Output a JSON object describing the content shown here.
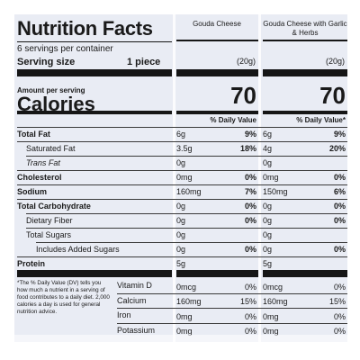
{
  "header": {
    "title": "Nutrition Facts",
    "servings": "6 servings per container",
    "serving_size_label": "Serving size",
    "serving_size_value": "1 piece",
    "amount_per_serving": "Amount per serving",
    "calories_label": "Calories",
    "dv_header_1": "% Daily Value",
    "dv_header_2": "% Daily Value*"
  },
  "products": [
    {
      "name": "Gouda Cheese",
      "serving_grams": "(20g)",
      "calories": "70"
    },
    {
      "name": "Gouda Cheese with Garlic & Herbs",
      "serving_grams": "(20g)",
      "calories": "70"
    }
  ],
  "nutrients": [
    {
      "label": "Total Fat",
      "p1_amt": "6g",
      "p1_dv": "9%",
      "p2_amt": "6g",
      "p2_dv": "9%"
    },
    {
      "label": "Saturated Fat",
      "p1_amt": "3.5g",
      "p1_dv": "18%",
      "p2_amt": "4g",
      "p2_dv": "20%"
    },
    {
      "label": "Trans Fat",
      "p1_amt": "0g",
      "p1_dv": "",
      "p2_amt": "0g",
      "p2_dv": ""
    },
    {
      "label": "Cholesterol",
      "p1_amt": "0mg",
      "p1_dv": "0%",
      "p2_amt": "0mg",
      "p2_dv": "0%"
    },
    {
      "label": "Sodium",
      "p1_amt": "160mg",
      "p1_dv": "7%",
      "p2_amt": "150mg",
      "p2_dv": "6%"
    },
    {
      "label": "Total Carbohydrate",
      "p1_amt": "0g",
      "p1_dv": "0%",
      "p2_amt": "0g",
      "p2_dv": "0%"
    },
    {
      "label": "Dietary Fiber",
      "p1_amt": "0g",
      "p1_dv": "0%",
      "p2_amt": "0g",
      "p2_dv": "0%"
    },
    {
      "label": "Total Sugars",
      "p1_amt": "0g",
      "p1_dv": "",
      "p2_amt": "0g",
      "p2_dv": ""
    },
    {
      "label": "Includes Added Sugars",
      "p1_amt": "0g",
      "p1_dv": "0%",
      "p2_amt": "0g",
      "p2_dv": "0%"
    },
    {
      "label": "Protein",
      "p1_amt": "5g",
      "p1_dv": "",
      "p2_amt": "5g",
      "p2_dv": ""
    }
  ],
  "vitamins": [
    {
      "label": "Vitamin D",
      "p1_amt": "0mcg",
      "p1_dv": "0%",
      "p2_amt": "0mcg",
      "p2_dv": "0%"
    },
    {
      "label": "Calcium",
      "p1_amt": "160mg",
      "p1_dv": "15%",
      "p2_amt": "160mg",
      "p2_dv": "15%"
    },
    {
      "label": "Iron",
      "p1_amt": "0mg",
      "p1_dv": "0%",
      "p2_amt": "0mg",
      "p2_dv": "0%"
    },
    {
      "label": "Potassium",
      "p1_amt": "0mg",
      "p1_dv": "0%",
      "p2_amt": "0mg",
      "p2_dv": "0%"
    }
  ],
  "footnote": "*The % Daily Value (DV) tells you how much a nutrient in a serving of food contributes to a daily diet. 2,000 calories a day is used for general nutrition advice.",
  "colors": {
    "panel": "#e9ecf4",
    "ink": "#161616"
  }
}
